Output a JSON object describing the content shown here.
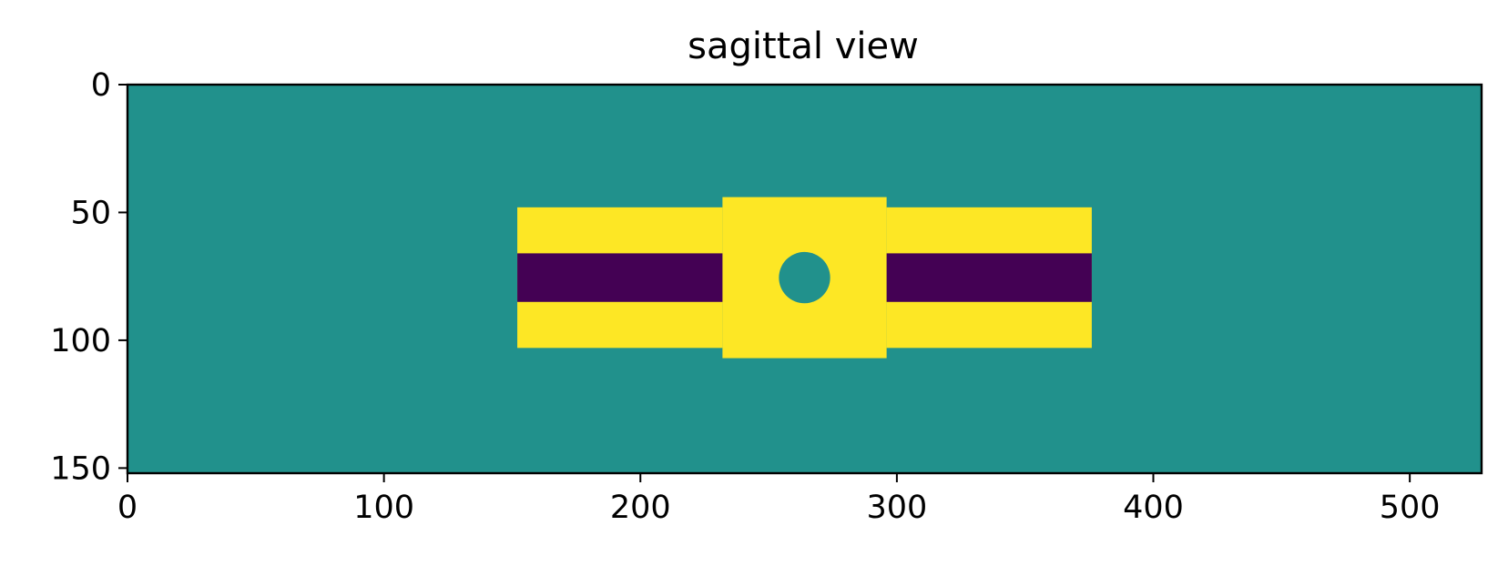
{
  "chart_data": {
    "type": "heatmap",
    "title": "sagittal view",
    "xlabel": "",
    "ylabel": "",
    "xlim": [
      0,
      528
    ],
    "ylim": [
      152,
      0
    ],
    "x_ticks": [
      0,
      100,
      200,
      300,
      400,
      500
    ],
    "y_ticks": [
      0,
      50,
      100,
      150
    ],
    "x_tick_labels": [
      "0",
      "100",
      "200",
      "300",
      "400",
      "500"
    ],
    "y_tick_labels": [
      "0",
      "50",
      "100",
      "150"
    ],
    "grid": false,
    "colormap": "viridis",
    "colors": {
      "background": "#21918c",
      "high": "#fde725",
      "low": "#440154"
    },
    "regions": [
      {
        "name": "background",
        "value": "mid",
        "color": "#21918c",
        "x": [
          0,
          528
        ],
        "y": [
          0,
          152
        ]
      },
      {
        "name": "left-band",
        "value": "high",
        "color": "#fde725",
        "x": [
          152,
          232
        ],
        "y": [
          48,
          103
        ]
      },
      {
        "name": "right-band",
        "value": "high",
        "color": "#fde725",
        "x": [
          296,
          376
        ],
        "y": [
          48,
          103
        ]
      },
      {
        "name": "center-block",
        "value": "high",
        "color": "#fde725",
        "x": [
          232,
          296
        ],
        "y": [
          44,
          107
        ]
      },
      {
        "name": "left-core",
        "value": "low",
        "color": "#440154",
        "x": [
          152,
          232
        ],
        "y": [
          66,
          85
        ]
      },
      {
        "name": "right-core",
        "value": "low",
        "color": "#440154",
        "x": [
          296,
          376
        ],
        "y": [
          66,
          85
        ]
      }
    ],
    "circle": {
      "name": "center-hole",
      "value": "mid",
      "color": "#21918c",
      "cx": 264,
      "cy": 75.5,
      "r": 10
    }
  }
}
